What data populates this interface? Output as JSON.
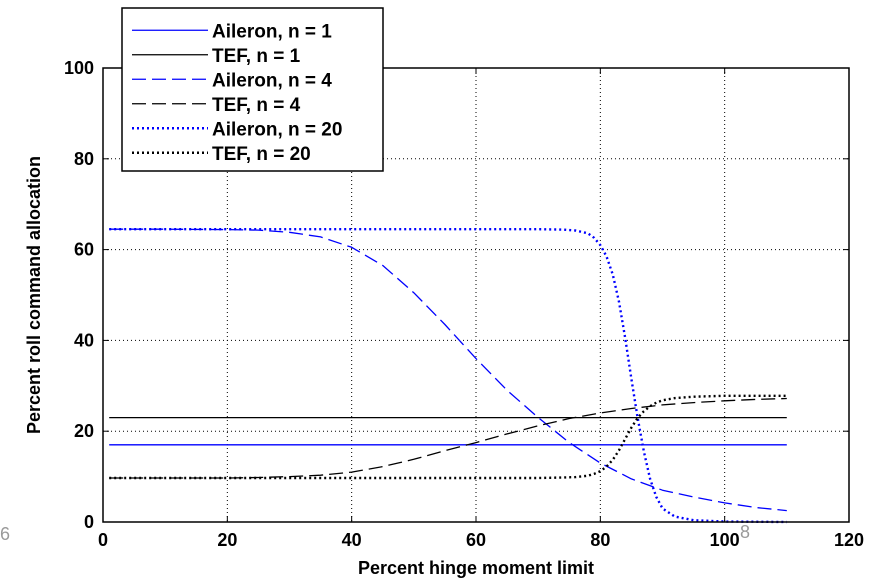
{
  "chart_data": {
    "type": "line",
    "title": "",
    "xlabel": "Percent hinge moment limit",
    "ylabel": "Percent roll command allocation",
    "xlim": [
      0,
      120
    ],
    "ylim": [
      0,
      100
    ],
    "x_ticks": [
      0,
      20,
      40,
      60,
      80,
      100,
      120
    ],
    "y_ticks": [
      0,
      20,
      40,
      60,
      80,
      100
    ],
    "grid": true,
    "grid_style": "dotted",
    "legend_position": "top-left",
    "series": [
      {
        "name": "Aileron, n = 1",
        "color": "#0000ff",
        "dash": "solid",
        "x": [
          1,
          110
        ],
        "y": [
          17,
          17
        ]
      },
      {
        "name": "TEF, n = 1",
        "color": "#000000",
        "dash": "solid",
        "x": [
          1,
          110
        ],
        "y": [
          23,
          23
        ]
      },
      {
        "name": "Aileron, n = 4",
        "color": "#0000ff",
        "dash": "dashed",
        "x": [
          1,
          10,
          20,
          25,
          30,
          35,
          40,
          45,
          50,
          55,
          60,
          65,
          70,
          75,
          80,
          85,
          90,
          95,
          100,
          105,
          110
        ],
        "y": [
          64.5,
          64.5,
          64.4,
          64.3,
          63.8,
          62.8,
          60.5,
          56.5,
          50.5,
          43.5,
          36,
          29,
          23,
          17.5,
          13,
          9.5,
          7,
          5.5,
          4.2,
          3.2,
          2.5
        ]
      },
      {
        "name": "TEF, n = 4",
        "color": "#000000",
        "dash": "dashed",
        "x": [
          1,
          10,
          20,
          25,
          30,
          35,
          40,
          45,
          50,
          55,
          60,
          65,
          70,
          75,
          80,
          85,
          90,
          95,
          100,
          105,
          110
        ],
        "y": [
          9.7,
          9.7,
          9.7,
          9.8,
          10,
          10.3,
          11,
          12.2,
          13.8,
          15.7,
          17.5,
          19.4,
          21.2,
          22.8,
          24,
          25,
          25.8,
          26.3,
          26.7,
          27,
          27.2
        ]
      },
      {
        "name": "Aileron, n = 20",
        "color": "#0000ff",
        "dash": "dotted",
        "x": [
          1,
          40,
          60,
          70,
          74,
          76,
          78,
          79,
          80,
          81,
          82,
          83,
          84,
          85,
          86,
          87,
          88,
          89,
          90,
          92,
          95,
          100,
          110
        ],
        "y": [
          64.5,
          64.5,
          64.5,
          64.5,
          64.4,
          64.2,
          63.6,
          62.6,
          61,
          58.5,
          54.5,
          48.5,
          40.5,
          31.5,
          23,
          15.5,
          9.5,
          5.5,
          3,
          1.2,
          0.4,
          0.1,
          0
        ]
      },
      {
        "name": "TEF, n = 20",
        "color": "#000000",
        "dash": "dotted",
        "x": [
          1,
          40,
          60,
          70,
          74,
          76,
          78,
          79,
          80,
          81,
          82,
          83,
          84,
          85,
          86,
          87,
          88,
          89,
          90,
          92,
          95,
          100,
          110
        ],
        "y": [
          9.7,
          9.7,
          9.7,
          9.7,
          9.8,
          9.9,
          10.2,
          10.6,
          11.2,
          12.2,
          13.7,
          15.8,
          18.3,
          20.8,
          22.9,
          24.4,
          25.5,
          26.3,
          26.8,
          27.3,
          27.6,
          27.8,
          27.8
        ]
      }
    ]
  },
  "edge_marks": {
    "left": "6",
    "bottom_right": "8"
  }
}
